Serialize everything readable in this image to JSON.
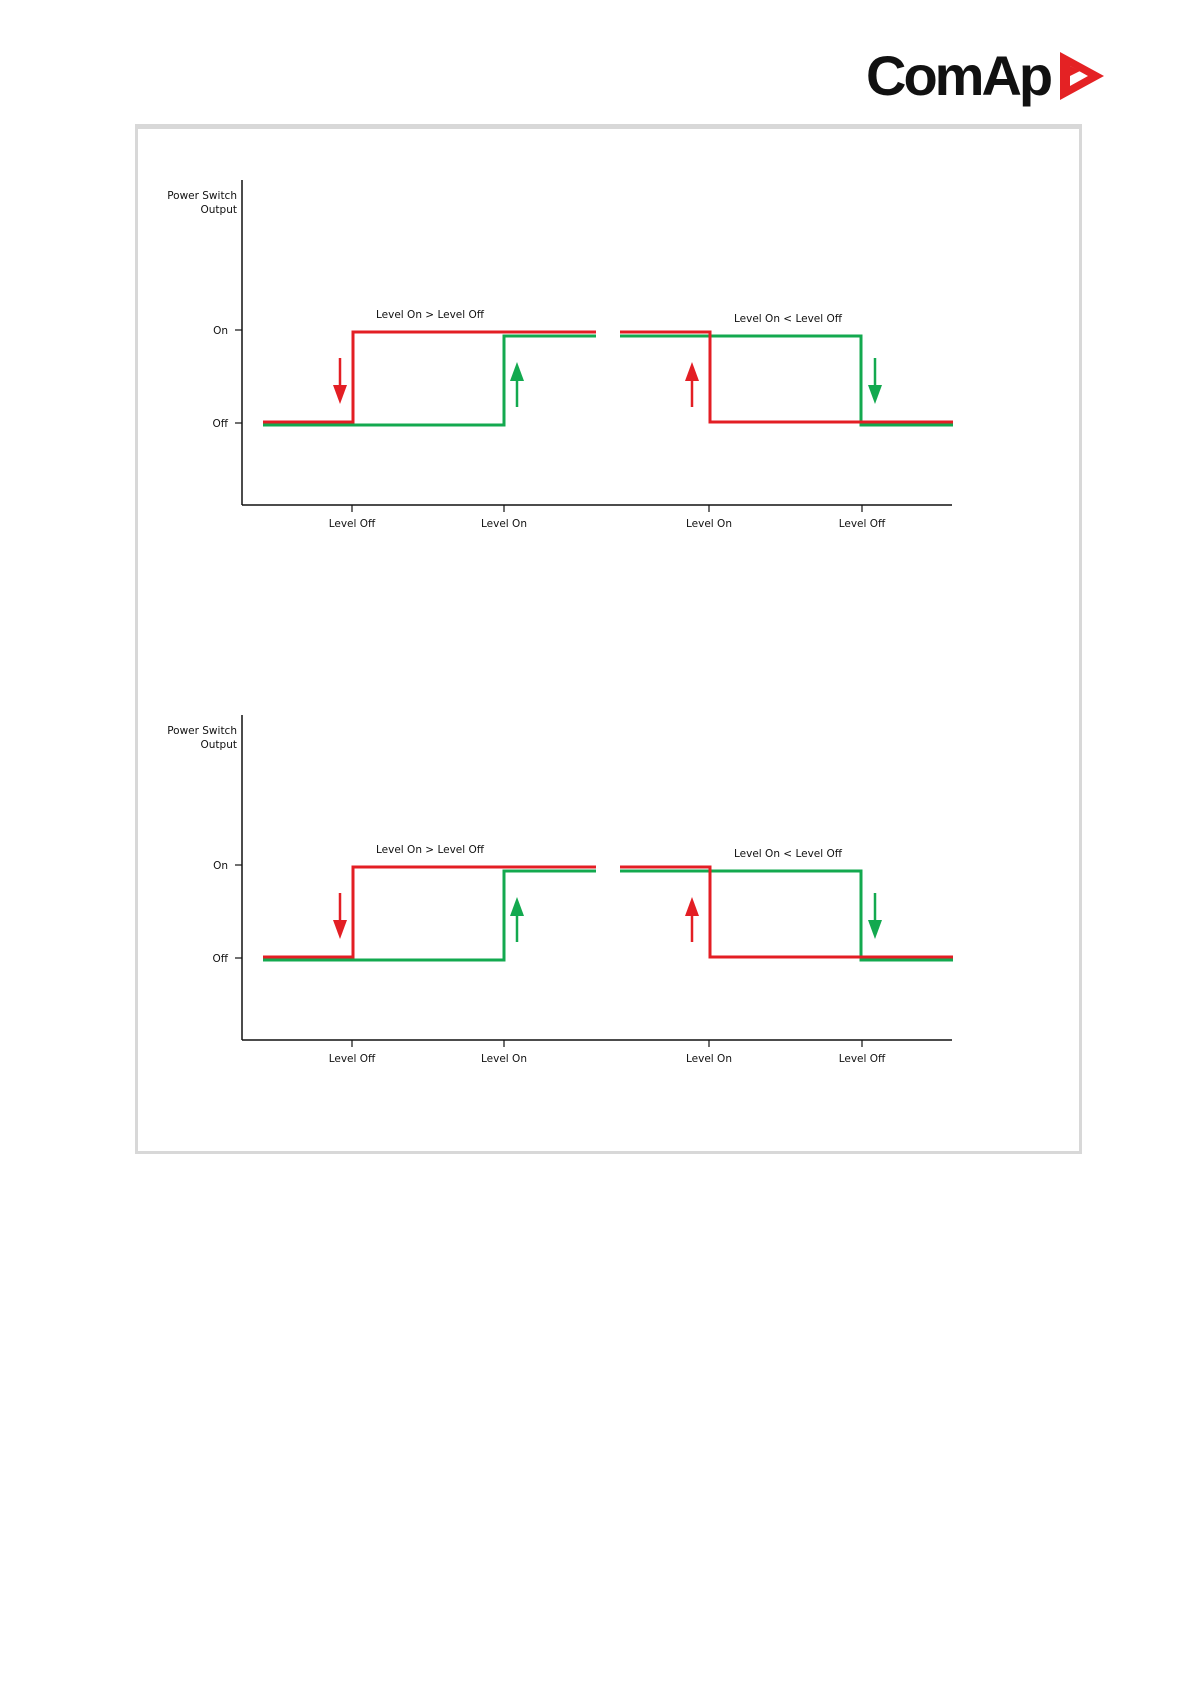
{
  "brand": {
    "name": "ComAp",
    "text_color": "#111111",
    "mark_color": "#e42224"
  },
  "colors": {
    "red": "#e31e24",
    "green": "#13a94f",
    "axis": "#111111",
    "frame_border": "#d8d8d8"
  },
  "diagrams": [
    {
      "y_axis_title": [
        "Power Switch",
        "Output"
      ],
      "y_ticks": [
        "On",
        "Off"
      ],
      "left": {
        "title": "Level On > Level Off",
        "x_ticks": [
          "Level Off",
          "Level On"
        ],
        "red_arrow": "down",
        "green_arrow": "up"
      },
      "right": {
        "title": "Level On < Level Off",
        "x_ticks": [
          "Level On",
          "Level Off"
        ],
        "red_arrow": "up",
        "green_arrow": "down"
      }
    },
    {
      "y_axis_title": [
        "Power Switch",
        "Output"
      ],
      "y_ticks": [
        "On",
        "Off"
      ],
      "left": {
        "title": "Level On > Level Off",
        "x_ticks": [
          "Level Off",
          "Level On"
        ],
        "red_arrow": "down",
        "green_arrow": "up"
      },
      "right": {
        "title": "Level On < Level Off",
        "x_ticks": [
          "Level On",
          "Level Off"
        ],
        "red_arrow": "up",
        "green_arrow": "down"
      }
    }
  ]
}
